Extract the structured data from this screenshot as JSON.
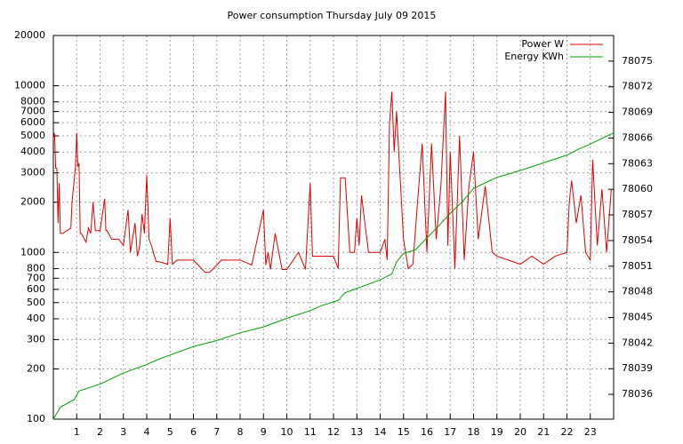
{
  "chart_data": {
    "type": "line",
    "title": "Power consumption Thursday July 09 2015",
    "xlim": [
      0,
      24
    ],
    "xticks": [
      1,
      2,
      3,
      4,
      5,
      6,
      7,
      8,
      9,
      10,
      11,
      12,
      13,
      14,
      15,
      16,
      17,
      18,
      19,
      20,
      21,
      22,
      23
    ],
    "ylim": [
      100,
      20000
    ],
    "yscale": "log",
    "yticks": [
      100,
      200,
      300,
      400,
      500,
      600,
      700,
      800,
      1000,
      2000,
      3000,
      4000,
      5000,
      6000,
      7000,
      8000,
      10000,
      20000
    ],
    "y2lim": [
      78033.1,
      78078
    ],
    "y2ticks": [
      78036,
      78039,
      78042,
      78045,
      78048,
      78051,
      78054,
      78057,
      78060,
      78063,
      78066,
      78069,
      78072,
      78075
    ],
    "grid": true,
    "legend": "top-right",
    "series": [
      {
        "name": "Power W",
        "color": "#e00000",
        "axis": "y",
        "x": [
          0,
          0.05,
          0.1,
          0.15,
          0.2,
          0.25,
          0.3,
          0.35,
          0.4,
          0.75,
          0.8,
          0.95,
          1.0,
          1.05,
          1.1,
          1.15,
          1.2,
          1.4,
          1.5,
          1.6,
          1.7,
          1.8,
          2.0,
          2.2,
          2.25,
          2.3,
          2.5,
          2.8,
          3.0,
          3.2,
          3.3,
          3.5,
          3.6,
          3.7,
          3.8,
          3.9,
          4.0,
          4.05,
          4.1,
          4.2,
          4.4,
          4.5,
          4.9,
          5.0,
          5.1,
          5.3,
          5.5,
          6.0,
          6.5,
          6.7,
          7.2,
          7.5,
          8.0,
          8.5,
          9.0,
          9.1,
          9.2,
          9.3,
          9.5,
          9.8,
          10.0,
          10.5,
          10.8,
          11.0,
          11.1,
          11.2,
          11.5,
          12.0,
          12.2,
          12.3,
          12.5,
          12.7,
          12.9,
          13.0,
          13.1,
          13.2,
          13.5,
          14.0,
          14.2,
          14.3,
          14.4,
          14.5,
          14.6,
          14.7,
          15.0,
          15.2,
          15.4,
          15.6,
          15.8,
          16.0,
          16.2,
          16.4,
          16.6,
          16.8,
          16.9,
          17.0,
          17.2,
          17.4,
          17.6,
          17.8,
          18.0,
          18.2,
          18.5,
          18.8,
          19.0,
          20.0,
          20.5,
          21.0,
          21.5,
          22.0,
          22.1,
          22.2,
          22.4,
          22.6,
          22.8,
          23.0,
          23.1,
          23.3,
          23.5,
          23.7,
          23.9
        ],
        "values": [
          4800,
          5200,
          3200,
          3200,
          1500,
          2600,
          1300,
          1300,
          1300,
          1400,
          2000,
          3300,
          5200,
          3300,
          3400,
          1300,
          1300,
          1150,
          1400,
          1300,
          2000,
          1350,
          1350,
          2100,
          1350,
          1350,
          1200,
          1200,
          1100,
          1800,
          1000,
          1500,
          950,
          1100,
          1700,
          1300,
          2900,
          1900,
          1200,
          1100,
          880,
          880,
          850,
          1600,
          850,
          900,
          900,
          900,
          760,
          760,
          900,
          900,
          900,
          840,
          1800,
          840,
          1000,
          790,
          1300,
          790,
          790,
          1000,
          790,
          2600,
          950,
          950,
          950,
          950,
          800,
          2800,
          2800,
          1000,
          1000,
          1600,
          1100,
          2200,
          1000,
          1000,
          1200,
          900,
          6000,
          9200,
          4000,
          7000,
          1200,
          800,
          850,
          2000,
          4500,
          1000,
          4500,
          1200,
          2500,
          9200,
          1100,
          4000,
          800,
          5000,
          900,
          2500,
          4000,
          1200,
          2500,
          1000,
          950,
          850,
          950,
          850,
          950,
          1000,
          2000,
          2700,
          1500,
          2200,
          1000,
          900,
          3600,
          1100,
          2400,
          1000,
          2400
        ]
      },
      {
        "name": "Energy KWh",
        "color": "#00a000",
        "axis": "y2",
        "x": [
          0,
          0.3,
          0.9,
          1.1,
          2,
          3,
          4,
          4.5,
          5,
          6,
          7,
          8,
          9,
          10,
          11,
          11.5,
          12.2,
          12.5,
          13,
          14,
          14.5,
          14.7,
          15,
          15.5,
          16,
          16.5,
          17,
          17.5,
          18,
          18.3,
          19,
          20,
          21,
          22,
          22.5,
          23,
          24
        ],
        "values": [
          78033.1,
          78034.5,
          78035.4,
          78036.4,
          78037.2,
          78038.5,
          78039.5,
          78040.1,
          78040.6,
          78041.6,
          78042.3,
          78043.2,
          78043.9,
          78044.9,
          78045.8,
          78046.4,
          78047.0,
          78047.9,
          78048.4,
          78049.4,
          78050.1,
          78051.5,
          78052.5,
          78052.9,
          78054.3,
          78055.7,
          78057.2,
          78058.5,
          78060.1,
          78060.5,
          78061.4,
          78062.2,
          78063.1,
          78064.0,
          78064.7,
          78065.3,
          78066.6
        ]
      }
    ]
  }
}
